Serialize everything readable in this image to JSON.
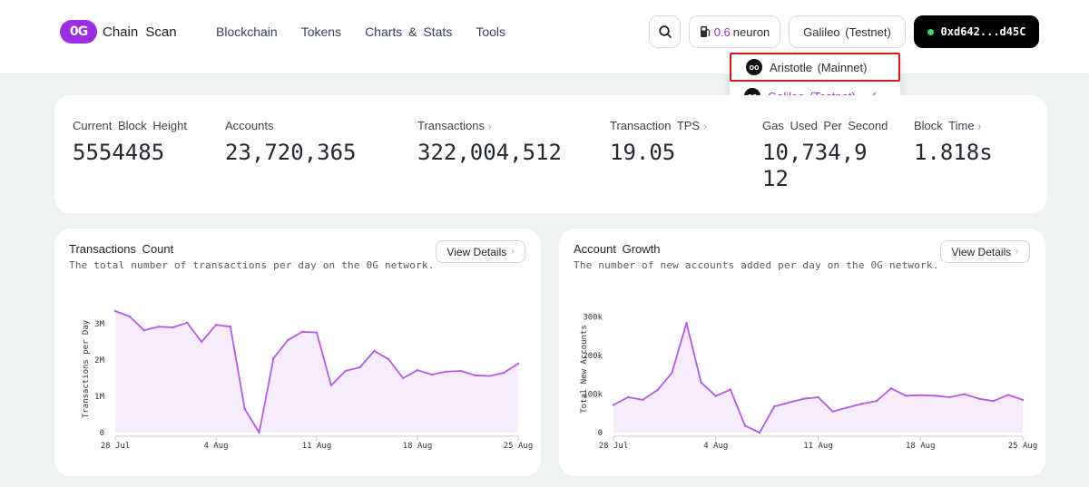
{
  "header": {
    "logo_mark": "0G",
    "brand": "Chain Scan",
    "nav": [
      "Blockchain",
      "Tokens",
      "Charts & Stats",
      "Tools"
    ],
    "gas_value": "0.6",
    "gas_unit": "neuron",
    "network": "Galileo (Testnet)",
    "wallet": "0xd642...d45C"
  },
  "network_menu": {
    "items": [
      {
        "label": "Aristotle (Mainnet)",
        "selected": false
      },
      {
        "label": "Galileo (Testnet)",
        "selected": true
      }
    ]
  },
  "stats": [
    {
      "label": "Current Block Height",
      "value": "5554485",
      "has_arrow": false
    },
    {
      "label": "Accounts",
      "value": "23,720,365",
      "has_arrow": false
    },
    {
      "label": "Transactions",
      "value": "322,004,512",
      "has_arrow": true
    },
    {
      "label": "Transaction TPS",
      "value": "19.05",
      "has_arrow": true
    },
    {
      "label": "Gas Used Per Second",
      "value": "10,734,912",
      "has_arrow": false
    },
    {
      "label": "Block Time",
      "value": "1.818s",
      "has_arrow": true
    }
  ],
  "colors": {
    "accent": "#9a2ee0",
    "line": "#b45ae8",
    "area": "#f6ecfc"
  },
  "chart_data": [
    {
      "type": "area",
      "title": "Transactions Count",
      "subtitle": "The total number of transactions per day on the 0G network.",
      "button": "View Details",
      "ylabel": "Transactions per Day",
      "ylim": [
        0,
        3500000
      ],
      "y_ticks": [
        0,
        1000000,
        2000000,
        3000000
      ],
      "y_tick_labels": [
        "0",
        "1M",
        "2M",
        "3M"
      ],
      "x_tick_labels": [
        "28 Jul",
        "4 Aug",
        "11 Aug",
        "18 Aug",
        "25 Aug"
      ],
      "x_tick_index": [
        0,
        7,
        14,
        21,
        28
      ],
      "values": [
        3350000,
        3200000,
        2820000,
        2920000,
        2900000,
        3030000,
        2500000,
        2970000,
        2920000,
        650000,
        0,
        2050000,
        2550000,
        2780000,
        2760000,
        1300000,
        1700000,
        1800000,
        2250000,
        2020000,
        1500000,
        1720000,
        1600000,
        1680000,
        1700000,
        1580000,
        1560000,
        1650000,
        1900000
      ]
    },
    {
      "type": "area",
      "title": "Account Growth",
      "subtitle": "The number of new accounts added per day on the 0G network.",
      "button": "View Details",
      "ylabel": "Total New Accounts",
      "ylim": [
        0,
        330000
      ],
      "y_ticks": [
        0,
        100000,
        200000,
        300000
      ],
      "y_tick_labels": [
        "0",
        "100k",
        "200k",
        "300k"
      ],
      "x_tick_labels": [
        "28 Jul",
        "4 Aug",
        "11 Aug",
        "18 Aug",
        "25 Aug"
      ],
      "x_tick_index": [
        0,
        7,
        14,
        21,
        28
      ],
      "values": [
        72000,
        92000,
        85000,
        110000,
        155000,
        285000,
        130000,
        95000,
        112000,
        18000,
        0,
        68000,
        78000,
        88000,
        92000,
        55000,
        65000,
        75000,
        82000,
        115000,
        96000,
        97000,
        96000,
        92000,
        100000,
        88000,
        82000,
        98000,
        85000
      ]
    }
  ]
}
